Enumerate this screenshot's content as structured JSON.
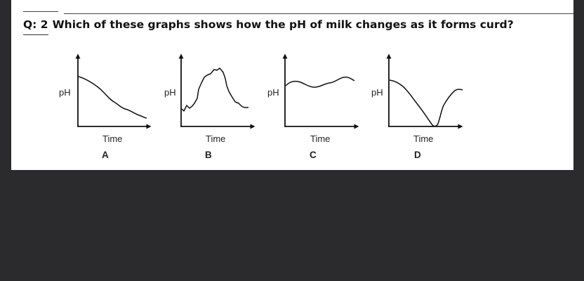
{
  "question": {
    "number": "Q: 2",
    "text": "Which of these graphs shows how the pH of milk changes as it forms curd?"
  },
  "graphs": [
    {
      "ylabel": "pH",
      "xlabel": "Time",
      "letter": "A"
    },
    {
      "ylabel": "pH",
      "xlabel": "Time",
      "letter": "B"
    },
    {
      "ylabel": "pH",
      "xlabel": "Time",
      "letter": "C"
    },
    {
      "ylabel": "pH",
      "xlabel": "Time",
      "letter": "D"
    }
  ]
}
